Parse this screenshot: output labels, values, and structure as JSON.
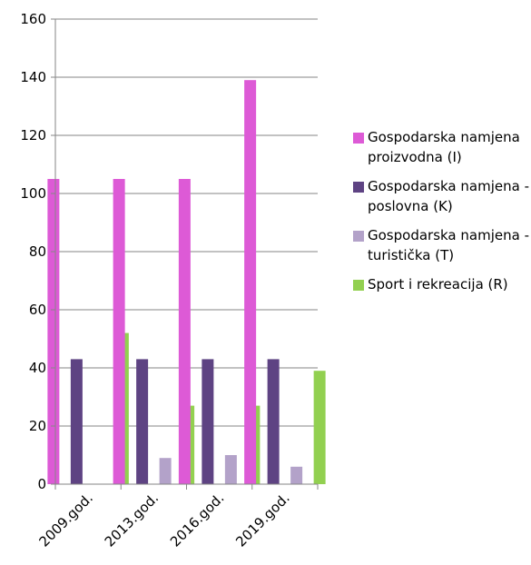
{
  "chart_data": {
    "type": "bar",
    "categories": [
      "2009.god.",
      "2013.god.",
      "2016.god.",
      "2019.god."
    ],
    "series": [
      {
        "name": "Gospodarska namjena proizvodna (I)",
        "color": "#dd5ad6",
        "values": [
          105,
          105,
          105,
          139
        ]
      },
      {
        "name": "Gospodarska namjena - poslovna (K)",
        "color": "#5e4383",
        "values": [
          43,
          43,
          43,
          43
        ]
      },
      {
        "name": "Gospodarska namjena - turistička (T)",
        "color": "#b3a2c9",
        "values": [
          0,
          9,
          10,
          6
        ]
      },
      {
        "name": "Sport i rekreacija (R)",
        "color": "#92d050",
        "values": [
          52,
          27,
          27,
          39
        ]
      }
    ],
    "title": "",
    "xlabel": "",
    "ylabel": "",
    "ylim": [
      0,
      160
    ],
    "yticks": [
      "0",
      "20",
      "40",
      "60",
      "80",
      "100",
      "120",
      "140",
      "160"
    ],
    "grid": true,
    "legend_position": "right"
  },
  "legend": {
    "items": [
      {
        "label": "Gospodarska namjena proizvodna (I)",
        "color": "#dd5ad6"
      },
      {
        "label": "Gospodarska namjena - poslovna (K)",
        "color": "#5e4383"
      },
      {
        "label": "Gospodarska namjena - turistička (T)",
        "color": "#b3a2c9"
      },
      {
        "label": "Sport i rekreacija (R)",
        "color": "#92d050"
      }
    ]
  }
}
